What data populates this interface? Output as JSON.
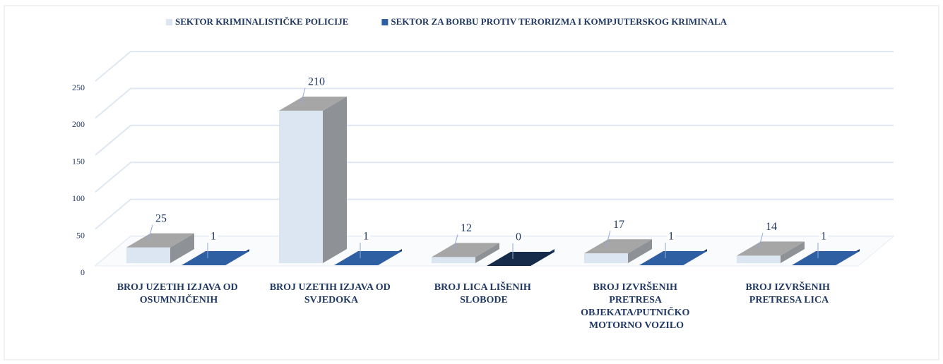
{
  "chart_data": {
    "type": "bar3d",
    "categories": [
      "BROJ UZETIH IZJAVA OD OSUMNJIČENIH",
      "BROJ UZETIH IZJAVA OD SVJEDOKA",
      "BROJ LICA LIŠENIH SLOBODE",
      "BROJ IZVRŠENIH PRETRESA OBJEKATA/PUTNIČKO MOTORNO VOZILO",
      "BROJ IZVRŠENIH PRETRESA LICA"
    ],
    "series": [
      {
        "name": "SEKTOR KRIMINALISTIČKE POLICIJE",
        "color": "#dce6f2",
        "values": [
          25,
          210,
          12,
          17,
          14
        ]
      },
      {
        "name": "SEKTOR ZA BORBU PROTIV TERORIZMA I KOMPJUTERSKOG KRIMINALA",
        "color": "#2e5fa3",
        "values": [
          1,
          1,
          0,
          1,
          1
        ]
      }
    ],
    "ylim": [
      0,
      250
    ],
    "yticks": [
      0,
      50,
      100,
      150,
      200,
      250
    ],
    "grid": true,
    "legend": "top"
  }
}
